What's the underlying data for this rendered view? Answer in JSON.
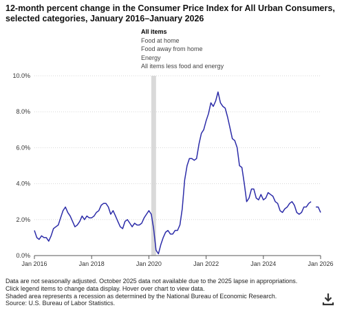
{
  "title": "12-month percent change in the Consumer Price Index for All Urban Consumers, selected categories, January 2016–January 2026",
  "legend": [
    {
      "label": "All items",
      "style": "solid",
      "active": true
    },
    {
      "label": "Food at home",
      "style": "dashed",
      "active": false
    },
    {
      "label": "Food away from home",
      "style": "longdash",
      "active": false
    },
    {
      "label": "Energy",
      "style": "dotted",
      "active": false
    },
    {
      "label": "All items less food and energy",
      "style": "dashdot",
      "active": false
    }
  ],
  "notes": [
    "Data are not seasonally adjusted. October 2025 data not available due to the 2025 lapse in appropriations.",
    "Click legend items to change data display. Hover over chart to view data.",
    "Shaded area represents a recession as determined by the National Bureau of Economic Research.",
    "Source: U.S. Bureau of Labor Statistics."
  ],
  "download_icon": "download-icon",
  "colors": {
    "series": "#2b2ba8",
    "recession": "#d9d9d9",
    "grid": "#d6d6d6"
  },
  "chart_data": {
    "type": "line",
    "title": "12-month percent change in the Consumer Price Index for All Urban Consumers, selected categories, January 2016–January 2026",
    "x_ticks": [
      "Jan 2016",
      "Jan 2018",
      "Jan 2020",
      "Jan 2022",
      "Jan 2024",
      "Jan 2026"
    ],
    "y_ticks": [
      "0.0%",
      "2.0%",
      "4.0%",
      "6.0%",
      "8.0%",
      "10.0%"
    ],
    "ylim": [
      0,
      10
    ],
    "xlim": [
      "2016-01",
      "2026-01"
    ],
    "grid": true,
    "recession": {
      "start": "2020-02",
      "end": "2020-04"
    },
    "series": [
      {
        "name": "All items",
        "start": "2016-01",
        "values": [
          1.4,
          1.0,
          0.9,
          1.1,
          1.0,
          1.0,
          0.8,
          1.1,
          1.5,
          1.6,
          1.7,
          2.1,
          2.5,
          2.7,
          2.4,
          2.2,
          1.9,
          1.6,
          1.7,
          1.9,
          2.2,
          2.0,
          2.2,
          2.1,
          2.1,
          2.2,
          2.4,
          2.5,
          2.8,
          2.9,
          2.9,
          2.7,
          2.3,
          2.5,
          2.2,
          1.9,
          1.6,
          1.5,
          1.9,
          2.0,
          1.8,
          1.6,
          1.8,
          1.7,
          1.7,
          1.8,
          2.1,
          2.3,
          2.5,
          2.3,
          1.5,
          0.3,
          0.1,
          0.6,
          1.0,
          1.3,
          1.4,
          1.2,
          1.2,
          1.4,
          1.4,
          1.7,
          2.6,
          4.2,
          5.0,
          5.4,
          5.4,
          5.3,
          5.4,
          6.2,
          6.8,
          7.0,
          7.5,
          7.9,
          8.5,
          8.3,
          8.6,
          9.1,
          8.5,
          8.3,
          8.2,
          7.7,
          7.1,
          6.5,
          6.4,
          6.0,
          5.0,
          4.9,
          4.0,
          3.0,
          3.2,
          3.7,
          3.7,
          3.2,
          3.1,
          3.4,
          3.1,
          3.2,
          3.5,
          3.4,
          3.3,
          3.0,
          2.9,
          2.5,
          2.4,
          2.6,
          2.7,
          2.9,
          3.0,
          2.8,
          2.4,
          2.3,
          2.4,
          2.7,
          2.7,
          2.9,
          3.0,
          null,
          2.7,
          2.7,
          2.4
        ]
      }
    ]
  }
}
